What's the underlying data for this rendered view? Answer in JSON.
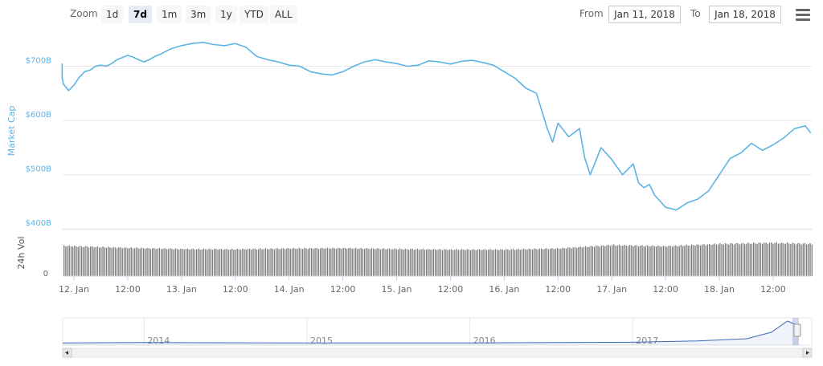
{
  "toolbar": {
    "zoom_label": "Zoom",
    "zoom_buttons": [
      "1d",
      "7d",
      "1m",
      "3m",
      "1y",
      "YTD",
      "ALL"
    ],
    "active_zoom": "7d",
    "from_label": "From",
    "from_value": "Jan 11, 2018",
    "to_label": "To",
    "to_value": "Jan 18, 2018",
    "menu_icon": "hamburger-menu-icon"
  },
  "colors": {
    "line": "#5cb4e6",
    "volume": "#7a7a7a",
    "navigator": "#3f68b8",
    "grid": "#e6e6e6",
    "axis_text": "#666666",
    "ylabel": "#5cb4e6"
  },
  "chart_data": [
    {
      "type": "line",
      "ylabel": "Market Cap",
      "yticks": [
        {
          "value": 700,
          "label": "$700B"
        },
        {
          "value": 600,
          "label": "$600B"
        },
        {
          "value": 500,
          "label": "$500B"
        },
        {
          "value": 400,
          "label": "$400B"
        }
      ],
      "ylim": [
        390,
        760
      ],
      "xlim": [
        0,
        7
      ],
      "grid": true,
      "x_unit": "days since 12. Jan",
      "x": [
        -0.25,
        -0.2,
        -0.15,
        -0.1,
        -0.05,
        0,
        0.05,
        0.1,
        0.15,
        0.2,
        0.25,
        0.3,
        0.35,
        0.4,
        0.45,
        0.5,
        0.55,
        0.6,
        0.65,
        0.7,
        0.75,
        0.8,
        0.9,
        1,
        1.1,
        1.2,
        1.3,
        1.4,
        1.5,
        1.6,
        1.7,
        1.8,
        1.9,
        2,
        2.1,
        2.2,
        2.3,
        2.4,
        2.5,
        2.6,
        2.7,
        2.8,
        2.9,
        3,
        3.1,
        3.2,
        3.3,
        3.4,
        3.5,
        3.6,
        3.7,
        3.8,
        3.9,
        4,
        4.1,
        4.2,
        4.3,
        4.4,
        4.45,
        4.5,
        4.6,
        4.7,
        4.75,
        4.8,
        4.9,
        5,
        5.1,
        5.2,
        5.25,
        5.3,
        5.35,
        5.4,
        5.5,
        5.6,
        5.7,
        5.8,
        5.9,
        6,
        6.1,
        6.2,
        6.3,
        6.4,
        6.5,
        6.6,
        6.7,
        6.8,
        6.85
      ],
      "y": [
        705,
        690,
        680,
        668,
        655,
        665,
        680,
        690,
        693,
        700,
        702,
        700,
        705,
        712,
        716,
        720,
        717,
        712,
        708,
        712,
        718,
        722,
        732,
        738,
        742,
        744,
        740,
        738,
        742,
        735,
        718,
        712,
        708,
        702,
        700,
        690,
        686,
        684,
        690,
        700,
        708,
        712,
        708,
        705,
        700,
        702,
        710,
        708,
        704,
        709,
        711,
        707,
        702,
        690,
        678,
        660,
        650,
        585,
        560,
        595,
        570,
        585,
        530,
        500,
        550,
        528,
        500,
        520,
        485,
        476,
        482,
        462,
        440,
        435,
        448,
        455,
        470,
        500,
        530,
        540,
        558,
        545,
        555,
        568,
        585,
        590,
        577
      ]
    },
    {
      "type": "bar",
      "ylabel": "24h Vol",
      "yticks": [
        {
          "value": 0,
          "label": "0"
        }
      ],
      "ylim": [
        0,
        100
      ],
      "x": [
        -0.25,
        0,
        0.5,
        1,
        1.5,
        2,
        2.5,
        3,
        3.5,
        4,
        4.25,
        4.5,
        5,
        5.5,
        6,
        6.5,
        6.85
      ],
      "values": [
        82,
        78,
        72,
        68,
        67,
        70,
        71,
        68,
        66,
        66,
        68,
        70,
        82,
        78,
        86,
        90,
        86
      ]
    },
    {
      "type": "area",
      "xticks": [
        "2014",
        "2015",
        "2016",
        "2017"
      ],
      "x": [
        2013.5,
        2014,
        2015,
        2016,
        2017,
        2017.4,
        2017.7,
        2017.85,
        2017.95,
        2018.02
      ],
      "y": [
        2,
        3,
        2,
        2,
        4,
        8,
        15,
        35,
        70,
        55
      ]
    }
  ],
  "x_axis": {
    "ticks": [
      {
        "pos": 0,
        "label": "12. Jan"
      },
      {
        "pos": 0.5,
        "label": "12:00"
      },
      {
        "pos": 1,
        "label": "13. Jan"
      },
      {
        "pos": 1.5,
        "label": "12:00"
      },
      {
        "pos": 2,
        "label": "14. Jan"
      },
      {
        "pos": 2.5,
        "label": "12:00"
      },
      {
        "pos": 3,
        "label": "15. Jan"
      },
      {
        "pos": 3.5,
        "label": "12:00"
      },
      {
        "pos": 4,
        "label": "16. Jan"
      },
      {
        "pos": 4.5,
        "label": "12:00"
      },
      {
        "pos": 5,
        "label": "17. Jan"
      },
      {
        "pos": 5.5,
        "label": "12:00"
      },
      {
        "pos": 6,
        "label": "18. Jan"
      },
      {
        "pos": 6.5,
        "label": "12:00"
      }
    ]
  }
}
